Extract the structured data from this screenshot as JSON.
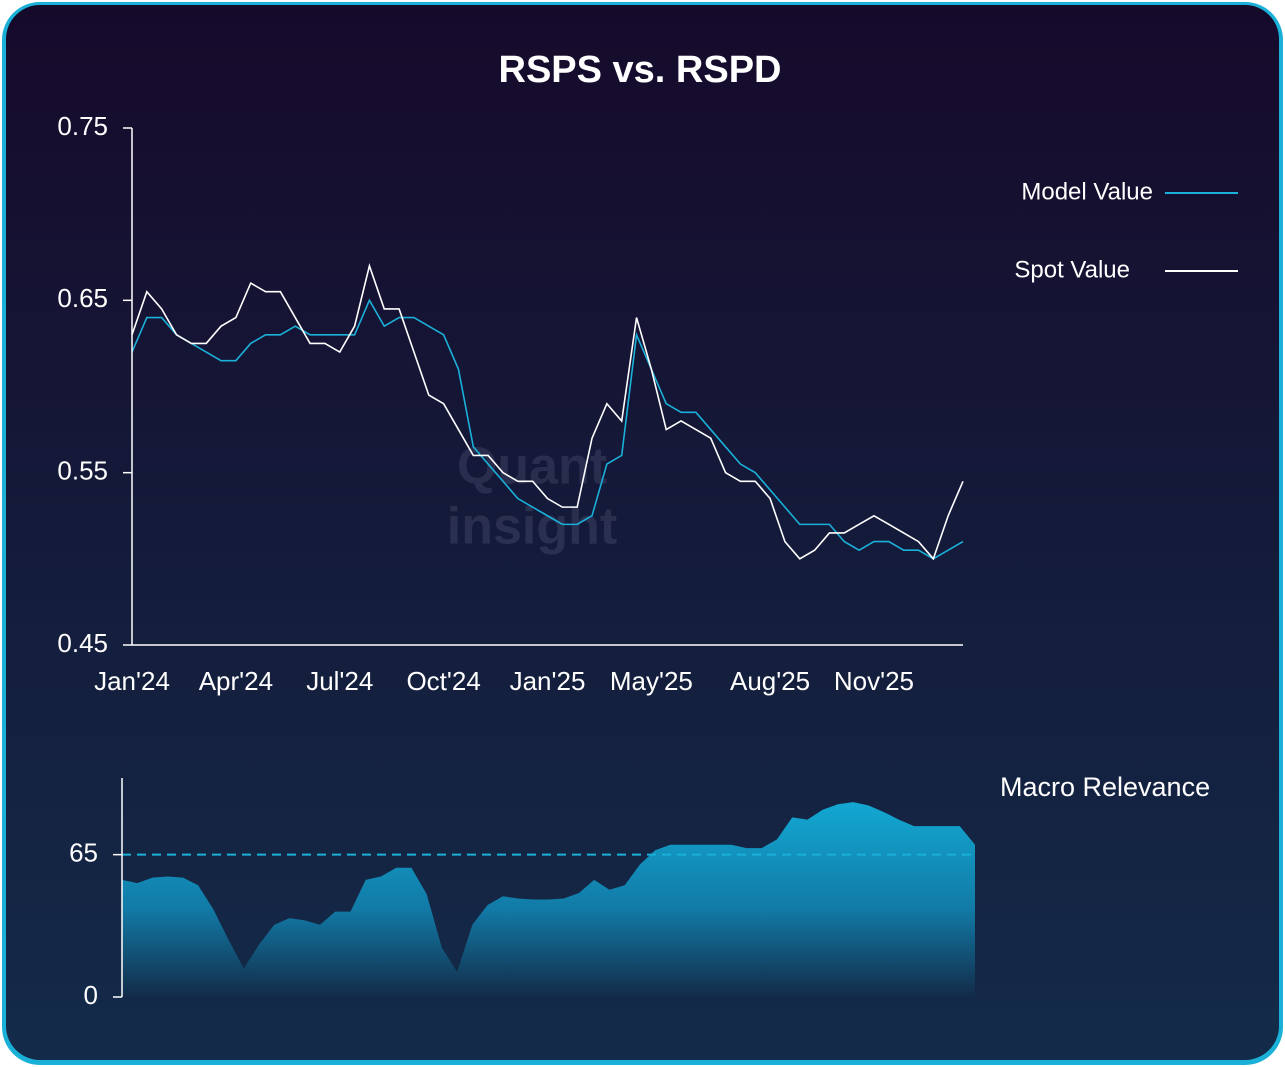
{
  "chart_data": [
    {
      "type": "line",
      "title": "RSPS vs. RSPD",
      "categories": [
        "Jan'24",
        null,
        null,
        null,
        null,
        null,
        null,
        "Apr'24",
        null,
        null,
        null,
        null,
        null,
        null,
        "Jul'24",
        null,
        null,
        null,
        null,
        null,
        null,
        "Oct'24",
        null,
        null,
        null,
        null,
        null,
        null,
        "Jan'25",
        null,
        null,
        null,
        null,
        null,
        null,
        "May'25",
        null,
        null,
        null,
        null,
        null,
        null,
        null,
        "Aug'25",
        null,
        null,
        null,
        null,
        null,
        null,
        "Nov'25",
        null,
        null,
        null,
        null,
        null,
        null
      ],
      "series": [
        {
          "name": "Model Value",
          "color": "#1ab0d8",
          "values": [
            0.62,
            0.64,
            0.64,
            0.63,
            0.625,
            0.62,
            0.615,
            0.615,
            0.625,
            0.63,
            0.63,
            0.635,
            0.63,
            0.63,
            0.63,
            0.63,
            0.65,
            0.635,
            0.64,
            0.64,
            0.635,
            0.63,
            0.61,
            0.565,
            0.555,
            0.545,
            0.535,
            0.53,
            0.525,
            0.52,
            0.52,
            0.525,
            0.555,
            0.56,
            0.63,
            0.61,
            0.59,
            0.585,
            0.585,
            0.575,
            0.565,
            0.555,
            0.55,
            0.54,
            0.53,
            0.52,
            0.52,
            0.52,
            0.51,
            0.505,
            0.51,
            0.51,
            0.505,
            0.505,
            0.5,
            0.505,
            0.51
          ]
        },
        {
          "name": "Spot Value",
          "color": "#ffffff",
          "values": [
            0.63,
            0.655,
            0.645,
            0.63,
            0.625,
            0.625,
            0.635,
            0.64,
            0.66,
            0.655,
            0.655,
            0.64,
            0.625,
            0.625,
            0.62,
            0.635,
            0.67,
            0.645,
            0.645,
            0.62,
            0.595,
            0.59,
            0.575,
            0.56,
            0.56,
            0.55,
            0.545,
            0.545,
            0.535,
            0.53,
            0.53,
            0.57,
            0.59,
            0.58,
            0.64,
            0.61,
            0.575,
            0.58,
            0.575,
            0.57,
            0.55,
            0.545,
            0.545,
            0.535,
            0.51,
            0.5,
            0.505,
            0.515,
            0.515,
            0.52,
            0.525,
            0.52,
            0.515,
            0.51,
            0.5,
            0.525,
            0.545
          ]
        }
      ],
      "ylim": [
        0.45,
        0.75
      ],
      "yticks": [
        0.45,
        0.55,
        0.65,
        0.75
      ],
      "watermark": [
        "Quant",
        "insight"
      ]
    },
    {
      "type": "area",
      "title": "Macro Relevance",
      "color": "#12a8d2",
      "values": [
        53.5,
        52,
        54.5,
        55,
        54.5,
        51,
        40,
        26,
        13,
        24,
        33,
        36,
        35,
        33,
        39,
        39,
        53.5,
        55,
        59,
        59,
        47,
        22.5,
        11.5,
        33,
        42,
        46,
        45,
        44.5,
        44.5,
        45,
        47.5,
        53.5,
        49,
        51,
        60.5,
        67,
        69.5,
        69.5,
        69.5,
        69.5,
        69.5,
        68,
        68,
        72,
        82,
        81,
        85.5,
        88,
        89,
        87.5,
        84.5,
        81,
        78,
        78,
        78,
        78,
        69.5
      ],
      "ylim": [
        0,
        100
      ],
      "yticks": [
        0,
        65
      ],
      "hline": 65
    }
  ]
}
